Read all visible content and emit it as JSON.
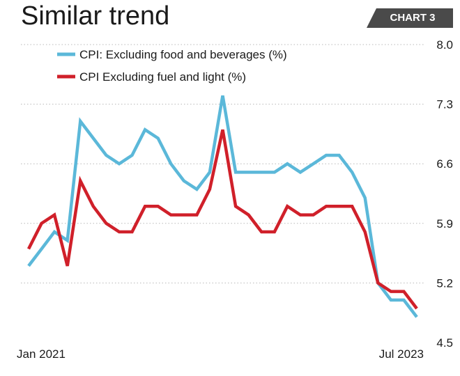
{
  "title": "Similar trend",
  "tag": "CHART 3",
  "colors": {
    "blue": "#5bb8d9",
    "red": "#d0202a",
    "grid": "#b8b8b8",
    "tag_bg": "#4a4a4a"
  },
  "chart_data": {
    "type": "line",
    "title": "Similar trend",
    "xlabel": "",
    "ylabel": "",
    "ylim": [
      4.5,
      8.0
    ],
    "yticks": [
      "8.0",
      "7.3",
      "6.6",
      "5.9",
      "5.2",
      "4.5"
    ],
    "xtick_labels": [
      "Jan 2021",
      "Jul 2023"
    ],
    "grid": "horizontal dotted",
    "legend_position": "top-left",
    "series": [
      {
        "name": "CPI: Excluding food and beverages (%)",
        "color": "#5bb8d9",
        "values": [
          5.4,
          5.6,
          5.8,
          5.7,
          7.1,
          6.9,
          6.7,
          6.6,
          6.7,
          7.0,
          6.9,
          6.6,
          6.4,
          6.3,
          6.5,
          7.4,
          6.5,
          6.5,
          6.5,
          6.5,
          6.6,
          6.5,
          6.6,
          6.7,
          6.7,
          6.5,
          6.2,
          5.2,
          5.0,
          5.0,
          4.8
        ]
      },
      {
        "name": "CPI Excluding fuel and light (%)",
        "color": "#d0202a",
        "values": [
          5.6,
          5.9,
          6.0,
          5.4,
          6.4,
          6.1,
          5.9,
          5.8,
          5.8,
          6.1,
          6.1,
          6.0,
          6.0,
          6.0,
          6.3,
          7.0,
          6.1,
          6.0,
          5.8,
          5.8,
          6.1,
          6.0,
          6.0,
          6.1,
          6.1,
          6.1,
          5.8,
          5.2,
          5.1,
          5.1,
          4.9
        ]
      }
    ]
  }
}
